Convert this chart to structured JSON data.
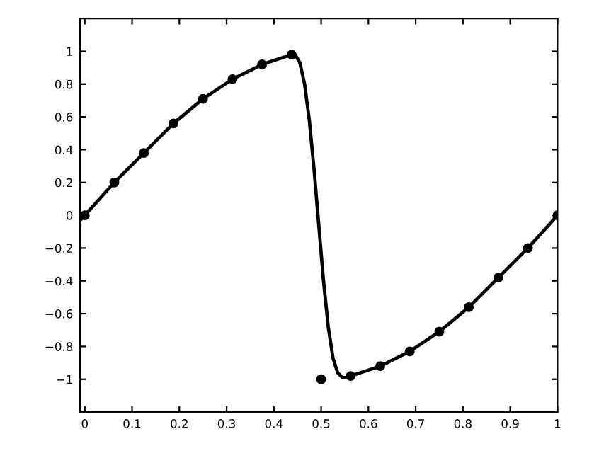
{
  "chart_data": {
    "type": "line",
    "xlim": [
      -0.01,
      1
    ],
    "ylim": [
      -1.2,
      1.2
    ],
    "xticks": [
      0,
      0.1,
      0.2,
      0.3,
      0.4,
      0.5,
      0.6,
      0.7,
      0.8,
      0.9,
      1
    ],
    "yticks": [
      {
        "value": -1,
        "label": "−1"
      },
      {
        "value": -0.8,
        "label": "−0.8"
      },
      {
        "value": -0.6,
        "label": "−0.6"
      },
      {
        "value": -0.4,
        "label": "−0.4"
      },
      {
        "value": -0.2,
        "label": "−0.2"
      },
      0,
      0.2,
      0.4,
      0.6,
      0.8,
      1
    ],
    "grid": false,
    "legend": false,
    "series": [
      {
        "color": "#000000",
        "marker": "none",
        "line_style": "solid",
        "x": [
          -0.01,
          0,
          0.0625,
          0.125,
          0.1875,
          0.25,
          0.3125,
          0.375,
          0.4375,
          0.445,
          0.455,
          0.465,
          0.475,
          0.485,
          0.495,
          0.505,
          0.515,
          0.525,
          0.535,
          0.545,
          0.555,
          0.5625,
          0.625,
          0.6875,
          0.75,
          0.8125,
          0.875,
          0.9375,
          1
        ],
        "values": [
          -0.03,
          0,
          0.2,
          0.38,
          0.56,
          0.71,
          0.83,
          0.92,
          0.98,
          0.98,
          0.93,
          0.8,
          0.58,
          0.28,
          -0.06,
          -0.4,
          -0.68,
          -0.87,
          -0.96,
          -0.99,
          -0.99,
          -0.98,
          -0.92,
          -0.83,
          -0.71,
          -0.56,
          -0.38,
          -0.2,
          0
        ]
      },
      {
        "type": "scatter",
        "color": "#000000",
        "marker": "circle",
        "x": [
          0,
          0.0625,
          0.125,
          0.1875,
          0.25,
          0.3125,
          0.375,
          0.4375,
          0.5,
          0.5625,
          0.625,
          0.6875,
          0.75,
          0.8125,
          0.875,
          0.9375,
          1
        ],
        "values": [
          0,
          0.2,
          0.38,
          0.56,
          0.71,
          0.83,
          0.92,
          0.98,
          -1,
          -0.98,
          -0.92,
          -0.83,
          -0.71,
          -0.56,
          -0.38,
          -0.2,
          0
        ]
      }
    ]
  }
}
